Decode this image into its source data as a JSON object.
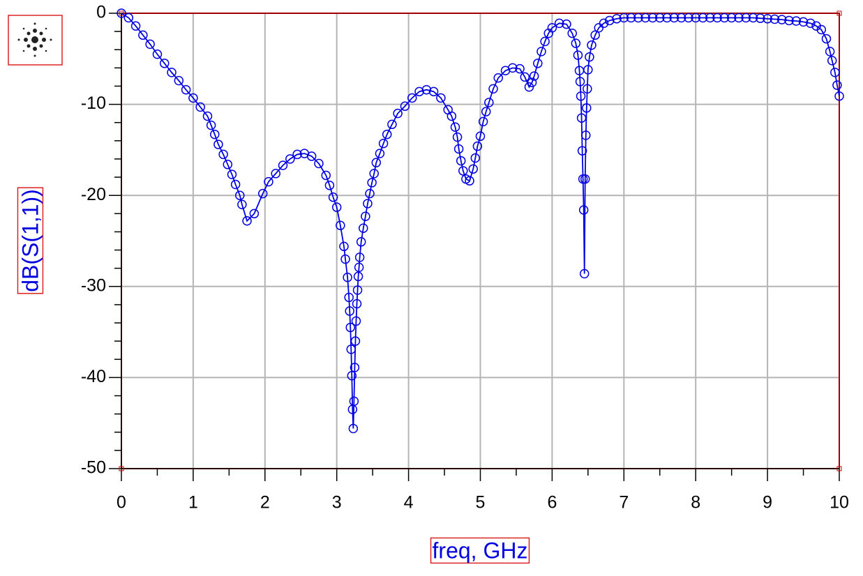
{
  "chart_data": {
    "type": "line",
    "x_label": "freq, GHz",
    "y_label": "dB(S(1,1))",
    "x": [
      0,
      0.1,
      0.2,
      0.3,
      0.4,
      0.5,
      0.6,
      0.7,
      0.8,
      0.9,
      1.0,
      1.1,
      1.2,
      1.25,
      1.3,
      1.35,
      1.42,
      1.48,
      1.54,
      1.59,
      1.65,
      1.68,
      1.75,
      1.85,
      1.97,
      2.05,
      2.15,
      2.25,
      2.35,
      2.45,
      2.55,
      2.65,
      2.75,
      2.85,
      2.9,
      2.95,
      3.0,
      3.05,
      3.1,
      3.12,
      3.15,
      3.17,
      3.18,
      3.19,
      3.2,
      3.21,
      3.22,
      3.23,
      3.24,
      3.25,
      3.26,
      3.27,
      3.28,
      3.29,
      3.3,
      3.31,
      3.32,
      3.34,
      3.37,
      3.4,
      3.43,
      3.46,
      3.49,
      3.52,
      3.55,
      3.6,
      3.65,
      3.7,
      3.77,
      3.85,
      3.95,
      4.05,
      4.15,
      4.25,
      4.35,
      4.45,
      4.55,
      4.6,
      4.65,
      4.68,
      4.7,
      4.73,
      4.76,
      4.8,
      4.85,
      4.9,
      4.93,
      4.96,
      5.0,
      5.04,
      5.08,
      5.12,
      5.18,
      5.25,
      5.35,
      5.45,
      5.55,
      5.62,
      5.68,
      5.72,
      5.75,
      5.8,
      5.85,
      5.9,
      5.95,
      6.0,
      6.1,
      6.2,
      6.28,
      6.33,
      6.36,
      6.38,
      6.39,
      6.4,
      6.41,
      6.42,
      6.43,
      6.44,
      6.45,
      6.46,
      6.47,
      6.48,
      6.49,
      6.5,
      6.52,
      6.55,
      6.6,
      6.65,
      6.72,
      6.8,
      6.9,
      7.0,
      7.1,
      7.2,
      7.3,
      7.4,
      7.5,
      7.6,
      7.7,
      7.8,
      7.9,
      8.0,
      8.1,
      8.2,
      8.3,
      8.4,
      8.5,
      8.6,
      8.7,
      8.8,
      8.9,
      9.0,
      9.1,
      9.2,
      9.3,
      9.4,
      9.5,
      9.6,
      9.68,
      9.75,
      9.82,
      9.87,
      9.9,
      9.94,
      9.97,
      10.0
    ],
    "series": [
      {
        "color": "#0000e0",
        "marker": "circle",
        "values": [
          0,
          -0.5,
          -1.4,
          -2.4,
          -3.4,
          -4.5,
          -5.5,
          -6.5,
          -7.4,
          -8.4,
          -9.3,
          -10.3,
          -11.3,
          -12.3,
          -13.3,
          -14.4,
          -15.5,
          -16.6,
          -17.7,
          -18.8,
          -20,
          -21,
          -22.8,
          -22,
          -19.8,
          -18.5,
          -17.6,
          -16.7,
          -16,
          -15.5,
          -15.4,
          -15.7,
          -16.5,
          -17.8,
          -18.9,
          -20.2,
          -21.3,
          -23.3,
          -25.6,
          -27,
          -29,
          -31.2,
          -32.7,
          -34.5,
          -36.9,
          -39.8,
          -43.5,
          -45.6,
          -42.6,
          -38.9,
          -36,
          -33.8,
          -31.9,
          -30.4,
          -28.9,
          -27.9,
          -26.8,
          -25.1,
          -23.6,
          -22.3,
          -20.9,
          -19.8,
          -18.6,
          -17.6,
          -16.4,
          -15.4,
          -14.3,
          -13.3,
          -12.2,
          -11,
          -10.2,
          -9.3,
          -8.6,
          -8.4,
          -8.6,
          -9.3,
          -10.6,
          -11.3,
          -12.5,
          -13.6,
          -14.9,
          -16.2,
          -17.3,
          -18.2,
          -18.4,
          -17.1,
          -15.9,
          -14.6,
          -13.5,
          -11.9,
          -10.8,
          -9.8,
          -8.3,
          -7.1,
          -6.3,
          -6.0,
          -6.1,
          -7.0,
          -8.1,
          -7.6,
          -6.9,
          -5.5,
          -4.2,
          -3.1,
          -2.2,
          -1.6,
          -1.1,
          -1.2,
          -2.2,
          -3.3,
          -4.6,
          -6.3,
          -7.5,
          -9.1,
          -11.5,
          -15.1,
          -18.2,
          -21.6,
          -28.6,
          -18.2,
          -13.4,
          -10.4,
          -8.3,
          -6.2,
          -4.8,
          -3.5,
          -2.4,
          -1.6,
          -1.1,
          -0.8,
          -0.6,
          -0.5,
          -0.5,
          -0.5,
          -0.5,
          -0.5,
          -0.5,
          -0.5,
          -0.5,
          -0.5,
          -0.5,
          -0.5,
          -0.5,
          -0.5,
          -0.5,
          -0.5,
          -0.5,
          -0.5,
          -0.5,
          -0.5,
          -0.55,
          -0.6,
          -0.65,
          -0.7,
          -0.8,
          -0.85,
          -0.95,
          -1.1,
          -1.4,
          -1.8,
          -2.8,
          -4.2,
          -5.2,
          -6.5,
          -7.9,
          -9.1
        ]
      }
    ],
    "xlim": [
      0,
      10
    ],
    "ylim": [
      -50,
      0
    ],
    "xticks": [
      0,
      1,
      2,
      3,
      4,
      5,
      6,
      7,
      8,
      9,
      10
    ],
    "yticks": [
      0,
      -10,
      -20,
      -30,
      -40,
      -50
    ],
    "xminorticks": [
      0.5,
      1.5,
      2.5,
      3.5,
      4.5,
      5.5,
      6.5,
      7.5,
      8.5,
      9.5
    ],
    "yminorticks": [
      -2,
      -4,
      -6,
      -8,
      -12,
      -14,
      -16,
      -18,
      -22,
      -24,
      -26,
      -28,
      -32,
      -34,
      -36,
      -38,
      -42,
      -44,
      -46,
      -48
    ],
    "grid": true
  }
}
